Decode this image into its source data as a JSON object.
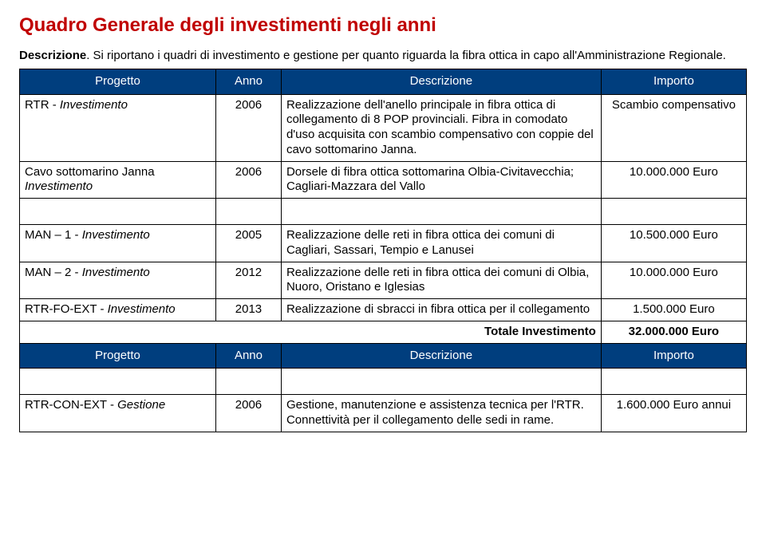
{
  "page": {
    "title": "Quadro Generale degli investimenti negli anni",
    "desc_label": "Descrizione",
    "desc_text": ". Si riportano i quadri di investimento e gestione per quanto riguarda la fibra ottica in capo all'Amministrazione Regionale."
  },
  "table1": {
    "headers": {
      "progetto": "Progetto",
      "anno": "Anno",
      "desc": "Descrizione",
      "importo": "Importo"
    },
    "rows": [
      {
        "progetto_plain": "RTR - ",
        "progetto_italic": "Investimento",
        "anno": "2006",
        "desc": "Realizzazione dell'anello principale in fibra ottica di collegamento di 8 POP provinciali. Fibra in comodato d'uso acquisita con scambio compensativo con coppie del cavo sottomarino Janna.",
        "importo": "Scambio compensativo"
      },
      {
        "progetto_plain": "Cavo sottomarino Janna ",
        "progetto_italic": "Investimento",
        "anno": "2006",
        "desc": "Dorsele di fibra ottica sottomarina Olbia-Civitavecchia; Cagliari-Mazzara del Vallo",
        "importo": "10.000.000 Euro"
      },
      {
        "progetto_plain": "MAN – 1 - ",
        "progetto_italic": "Investimento",
        "anno": "2005",
        "desc": "Realizzazione delle reti in fibra ottica dei comuni di Cagliari, Sassari, Tempio e Lanusei",
        "importo": "10.500.000 Euro"
      },
      {
        "progetto_plain": "MAN – 2 - ",
        "progetto_italic": "Investimento",
        "anno": "2012",
        "desc": "Realizzazione delle reti in fibra ottica dei comuni di Olbia, Nuoro, Oristano e Iglesias",
        "importo": "10.000.000 Euro"
      },
      {
        "progetto_plain": "RTR-FO-EXT - ",
        "progetto_italic": "Investimento",
        "anno": "2013",
        "desc": "Realizzazione di sbracci in fibra ottica per il collegamento",
        "importo": "1.500.000 Euro"
      }
    ],
    "total": {
      "label": "Totale Investimento",
      "value": "32.000.000 Euro"
    }
  },
  "table2": {
    "headers": {
      "progetto": "Progetto",
      "anno": "Anno",
      "desc": "Descrizione",
      "importo": "Importo"
    },
    "rows": [
      {
        "progetto_plain": "RTR-CON-EXT  - ",
        "progetto_italic": "Gestione",
        "anno": "2006",
        "desc": "Gestione, manutenzione e assistenza tecnica per l'RTR.  Connettività per il collegamento delle sedi in rame.",
        "importo": "1.600.000 Euro annui"
      }
    ]
  },
  "colors": {
    "title": "#c00000",
    "header_bg": "#003e7e",
    "header_fg": "#ffffff",
    "border": "#000000",
    "text": "#000000",
    "bg": "#ffffff"
  }
}
